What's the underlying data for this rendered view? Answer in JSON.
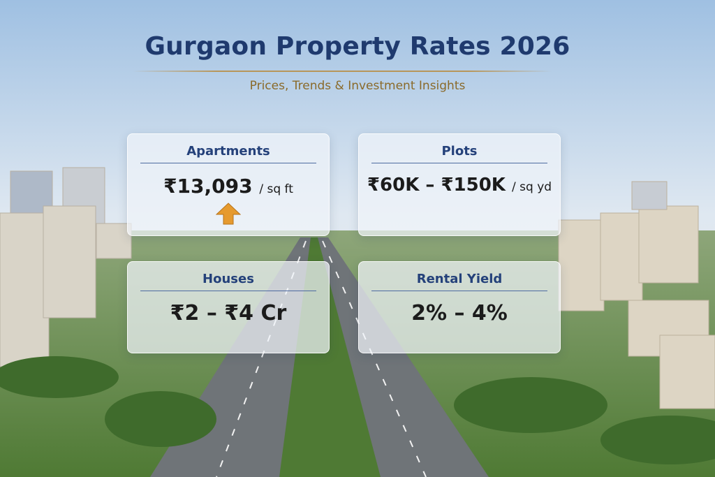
{
  "header": {
    "title": "Gurgaon Property Rates 2026",
    "subtitle": "Prices, Trends & Investment Insights"
  },
  "cards": [
    {
      "label": "Apartments",
      "value": "₹13,093",
      "unit": "/ sq ft"
    },
    {
      "label": "Plots",
      "value": "₹60K – ₹150K",
      "unit": "/ sq yd"
    },
    {
      "label": "Houses",
      "value": "₹2 – ₹4 Cr"
    },
    {
      "label": "Rental Yield",
      "value": "2% – 4%"
    }
  ]
}
